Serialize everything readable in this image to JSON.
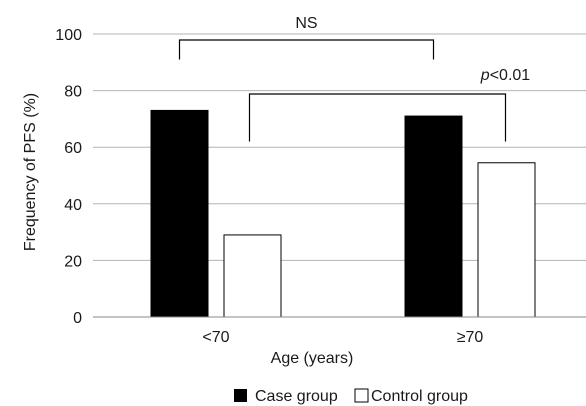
{
  "chart_data": {
    "type": "bar",
    "categories": [
      "<70",
      "≥70"
    ],
    "series": [
      {
        "name": "Case group",
        "values": [
          73,
          71
        ],
        "color": "#000000",
        "fill": "solid"
      },
      {
        "name": "Control group",
        "values": [
          29,
          54.5
        ],
        "color": "#ffffff",
        "fill": "outline"
      }
    ],
    "xlabel": "Age (years)",
    "ylabel": "Frequency of PFS (%)",
    "ylim": [
      0,
      100
    ],
    "yticks": [
      0,
      20,
      40,
      60,
      80,
      100
    ],
    "grid": true,
    "legend": "bottom-center",
    "annotations": [
      {
        "text": "NS",
        "italic": false,
        "from": "<70 Case group",
        "to": "≥70 Case group"
      },
      {
        "text_italic": "p",
        "text": "<0.01",
        "from": "<70 Control group",
        "to": "≥70 Control group"
      }
    ]
  }
}
